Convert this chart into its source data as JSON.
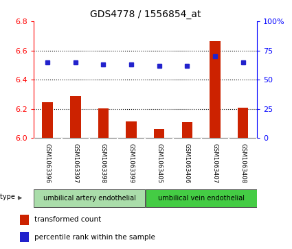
{
  "title": "GDS4778 / 1556854_at",
  "samples": [
    "GSM1063396",
    "GSM1063397",
    "GSM1063398",
    "GSM1063399",
    "GSM1063405",
    "GSM1063406",
    "GSM1063407",
    "GSM1063408"
  ],
  "bar_values": [
    6.245,
    6.29,
    6.205,
    6.115,
    6.065,
    6.11,
    6.665,
    6.21
  ],
  "dot_values_pct": [
    65,
    65,
    63,
    63,
    62,
    62,
    70,
    65
  ],
  "ylim_left": [
    6.0,
    6.8
  ],
  "ylim_right": [
    0,
    100
  ],
  "yticks_left": [
    6.0,
    6.2,
    6.4,
    6.6,
    6.8
  ],
  "yticks_right": [
    0,
    25,
    50,
    75,
    100
  ],
  "bar_color": "#cc2200",
  "dot_color": "#2222cc",
  "cell_type_green1": "#aaddaa",
  "cell_type_green2": "#44cc44",
  "cell_types": [
    "umbilical artery endothelial",
    "umbilical vein endothelial"
  ],
  "n_group1": 4,
  "n_group2": 4,
  "gray_bg": "#cccccc",
  "legend_red": "transformed count",
  "legend_blue": "percentile rank within the sample",
  "bg": "#ffffff"
}
